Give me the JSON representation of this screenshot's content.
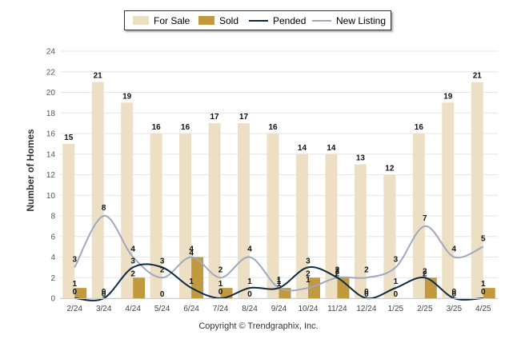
{
  "legend": {
    "for_sale": "For Sale",
    "sold": "Sold",
    "pended": "Pended",
    "new_listing": "New Listing"
  },
  "footer": {
    "copyright": "Copyright © Trendgraphix, Inc."
  },
  "colors": {
    "for_sale": "#eddfc4",
    "sold": "#c19a3f",
    "pended": "#0d2a44",
    "new_listing": "#9ea8bf",
    "grid": "#e6e6e6"
  },
  "chart_data": {
    "type": "bar",
    "ylabel": "Number of Homes",
    "ylim": [
      0,
      24
    ],
    "yticks": [
      0,
      2,
      4,
      6,
      8,
      10,
      12,
      14,
      16,
      18,
      20,
      22,
      24
    ],
    "categories": [
      "2/24",
      "3/24",
      "4/24",
      "5/24",
      "6/24",
      "7/24",
      "8/24",
      "9/24",
      "10/24",
      "11/24",
      "12/24",
      "1/25",
      "2/25",
      "3/25",
      "4/25"
    ],
    "series": [
      {
        "name": "For Sale",
        "type": "bar",
        "values": [
          15,
          21,
          19,
          16,
          16,
          17,
          17,
          16,
          14,
          14,
          13,
          12,
          16,
          19,
          21
        ]
      },
      {
        "name": "Sold",
        "type": "bar",
        "values": [
          1,
          0,
          2,
          0,
          4,
          1,
          0,
          1,
          2,
          2,
          0,
          0,
          2,
          0,
          1
        ]
      },
      {
        "name": "Pended",
        "type": "line",
        "values": [
          0,
          0,
          3,
          3,
          1,
          0,
          1,
          1,
          3,
          2,
          0,
          1,
          2,
          0,
          0
        ]
      },
      {
        "name": "New Listing",
        "type": "line",
        "values": [
          3,
          8,
          4,
          2,
          4,
          2,
          4,
          1,
          1,
          2,
          2,
          3,
          7,
          4,
          5
        ]
      }
    ],
    "legend_position": "top",
    "grid": true
  }
}
